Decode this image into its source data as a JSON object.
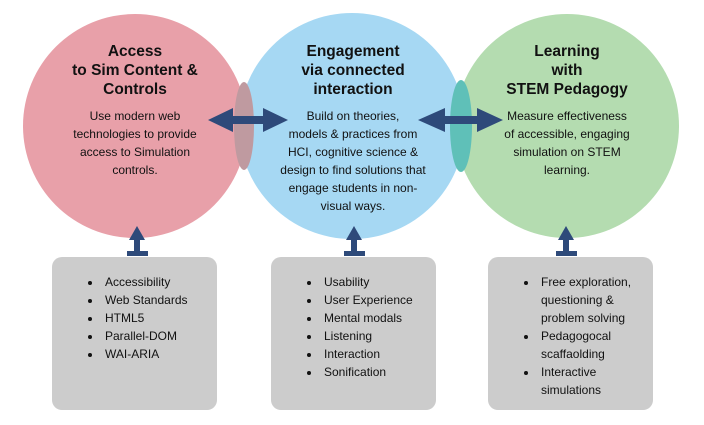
{
  "colors": {
    "access_circle": "#e8a0a9",
    "engagement_circle": "#a6d8f3",
    "learning_circle": "#b4dcb0",
    "arrow": "#2e4a7a",
    "box": "#cccccc"
  },
  "circles": [
    {
      "title": "Access\nto Sim Content &\nControls",
      "body": "Use modern web\ntechnologies to provide\naccess to Simulation\ncontrols."
    },
    {
      "title": "Engagement\nvia connected\ninteraction",
      "body": "Build on theories,\nmodels & practices from\nHCI, cognitive science &\ndesign to find solutions that\nengage students in non-\nvisual ways."
    },
    {
      "title": "Learning\nwith\nSTEM Pedagogy",
      "body": "Measure effectiveness\nof accessible, engaging\nsimulation on STEM\nlearning."
    }
  ],
  "boxes": [
    {
      "items": [
        "Accessibility",
        "Web Standards",
        "HTML5",
        "Parallel-DOM",
        "WAI-ARIA"
      ]
    },
    {
      "items": [
        "Usability",
        "User Experience",
        "Mental modals",
        "Listening",
        "Interaction",
        "Sonification"
      ]
    },
    {
      "items": [
        "Free exploration,\nquestioning &\nproblem solving",
        "Pedagogocal\nscaffaolding",
        "Interactive\nsimulations"
      ]
    }
  ]
}
